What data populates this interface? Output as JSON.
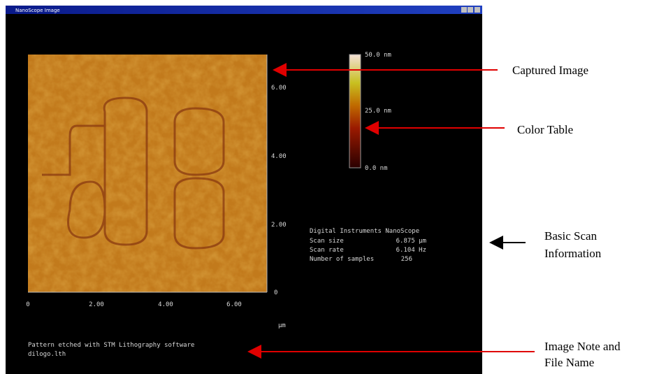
{
  "window": {
    "title": "NanoScope Image"
  },
  "image": {
    "y_ticks": [
      "6.00",
      "4.00",
      "2.00",
      "0"
    ],
    "x_ticks": [
      "0",
      "2.00",
      "4.00",
      "6.00"
    ],
    "x_unit": "µm"
  },
  "color_table": {
    "labels": [
      "50.0 nm",
      "25.0 nm",
      "0.0 nm"
    ]
  },
  "scan_info": {
    "heading": "Digital Instruments NanoScope",
    "rows": [
      [
        "Scan size",
        "6.875 µm"
      ],
      [
        "Scan rate",
        "6.104 Hz"
      ],
      [
        "Number of samples",
        "256"
      ]
    ]
  },
  "note": {
    "lines": [
      "Pattern etched with STM Lithography software",
      "dilogo.lth"
    ]
  },
  "annotations": {
    "captured_image": "Captured Image",
    "color_table": "Color Table",
    "scan_info": [
      "Basic Scan",
      "Information"
    ],
    "note": [
      "Image Note and",
      "File Name"
    ]
  }
}
